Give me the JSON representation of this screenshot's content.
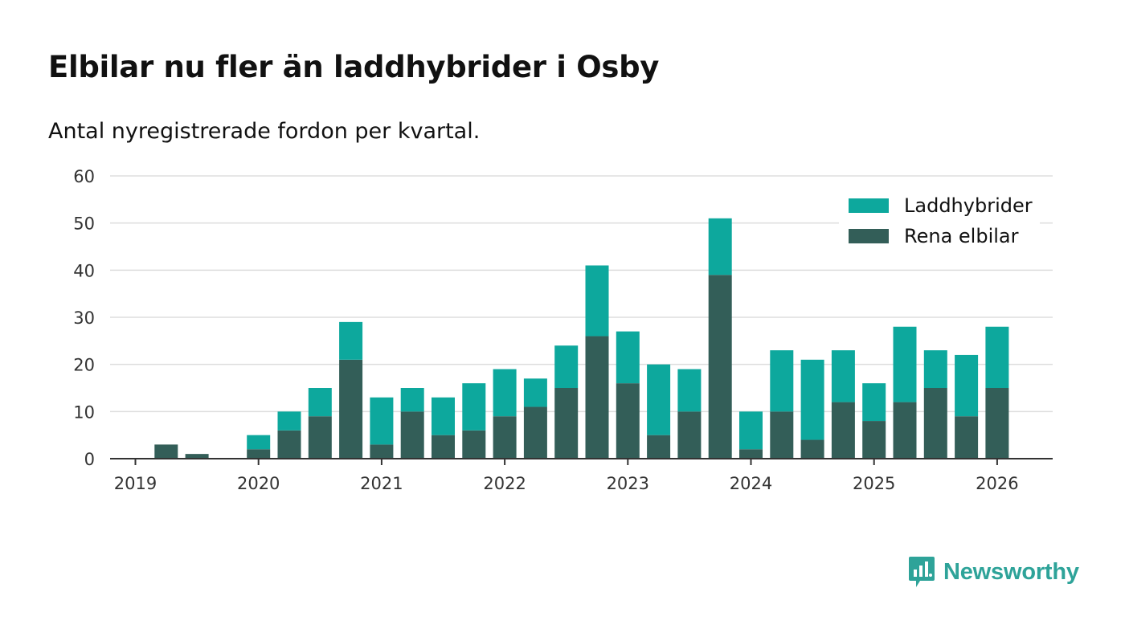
{
  "header": {
    "title": "Elbilar nu fler än laddhybrider i Osby",
    "subtitle": "Antal nyregistrerade fordon per kvartal."
  },
  "brand": {
    "name": "Newsworthy"
  },
  "colors": {
    "laddhybrider": "#0da89d",
    "rena_elbilar": "#335e58",
    "grid": "#dddddd",
    "axis": "#333333"
  },
  "chart_data": {
    "type": "bar",
    "stacked": true,
    "title": "Elbilar nu fler än laddhybrider i Osby",
    "subtitle": "Antal nyregistrerade fordon per kvartal.",
    "xlabel": "",
    "ylabel": "",
    "ylim": [
      0,
      60
    ],
    "yticks": [
      0,
      10,
      20,
      30,
      40,
      50,
      60
    ],
    "xtick_labels": [
      "2019",
      "2020",
      "2021",
      "2022",
      "2023",
      "2024",
      "2025",
      "2026"
    ],
    "legend_position": "top-right",
    "categories": [
      "2019 Q1",
      "2019 Q2",
      "2019 Q3",
      "2019 Q4",
      "2020 Q1",
      "2020 Q2",
      "2020 Q3",
      "2020 Q4",
      "2021 Q1",
      "2021 Q2",
      "2021 Q3",
      "2021 Q4",
      "2022 Q1",
      "2022 Q2",
      "2022 Q3",
      "2022 Q4",
      "2023 Q1",
      "2023 Q2",
      "2023 Q3",
      "2023 Q4",
      "2024 Q1",
      "2024 Q2",
      "2024 Q3",
      "2024 Q4",
      "2025 Q1",
      "2025 Q2",
      "2025 Q3",
      "2025 Q4",
      "2026 Q1"
    ],
    "series": [
      {
        "name": "Rena elbilar",
        "values": [
          0,
          3,
          1,
          0,
          2,
          6,
          9,
          21,
          3,
          10,
          5,
          6,
          9,
          11,
          15,
          26,
          16,
          5,
          10,
          39,
          2,
          10,
          4,
          12,
          8,
          12,
          15,
          9,
          15
        ]
      },
      {
        "name": "Laddhybrider",
        "values": [
          0,
          0,
          0,
          0,
          3,
          4,
          6,
          8,
          10,
          5,
          8,
          10,
          10,
          6,
          9,
          15,
          11,
          15,
          9,
          12,
          8,
          13,
          17,
          11,
          8,
          16,
          8,
          13,
          13
        ]
      }
    ],
    "legend": [
      "Laddhybrider",
      "Rena elbilar"
    ]
  }
}
